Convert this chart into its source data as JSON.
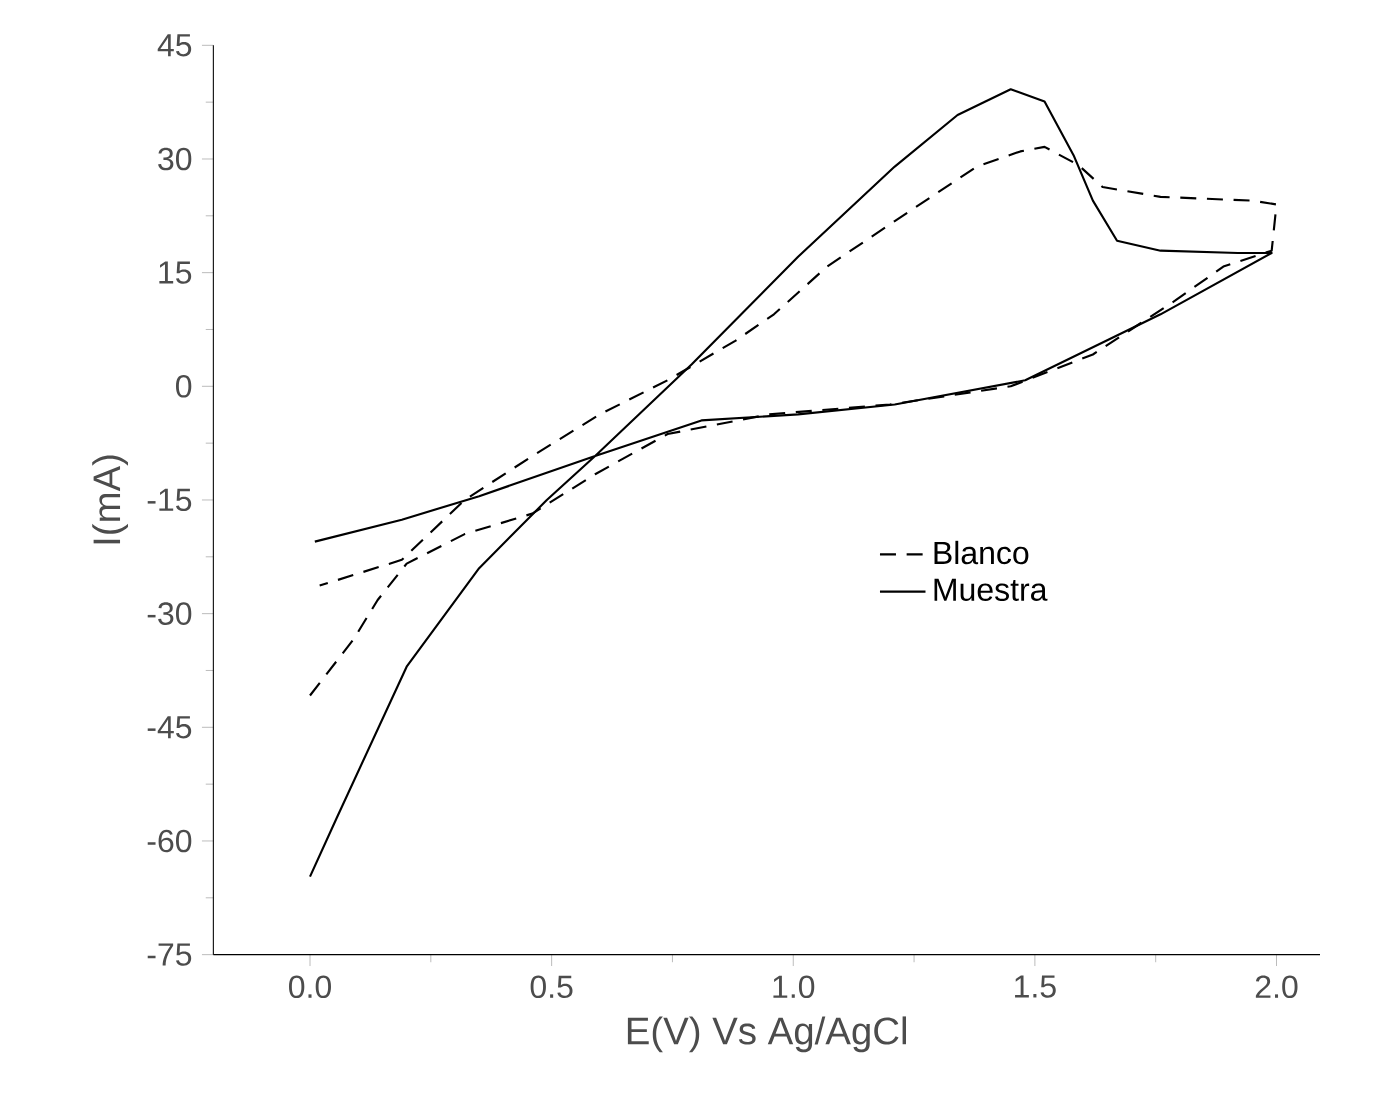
{
  "chart_data": {
    "type": "line",
    "xlabel": "E(V) Vs Ag/AgCl",
    "ylabel": "I(mA)",
    "xlim": [
      -0.2,
      2.09
    ],
    "ylim": [
      -75,
      45
    ],
    "xticks": [
      {
        "value": 0,
        "label": "0.0"
      },
      0.5,
      {
        "value": 1,
        "label": "1.0"
      },
      1.5,
      {
        "value": 2,
        "label": "2.0"
      }
    ],
    "yticks": [
      -75,
      -60,
      -45,
      -30,
      -15,
      0,
      15,
      30,
      45
    ],
    "legend": "right",
    "grid": false,
    "series": [
      {
        "name": "Blanco",
        "color": "#000000",
        "line_style": "dashed",
        "x": [
          0.0,
          0.09,
          0.14,
          0.2,
          0.32,
          0.46,
          0.59,
          0.74,
          0.95,
          1.2,
          1.45,
          1.62,
          1.79,
          1.89,
          1.99,
          2.0,
          1.95,
          1.76,
          1.64,
          1.59,
          1.52,
          1.47,
          1.38,
          1.21,
          1.07,
          0.96,
          0.88,
          0.74,
          0.6,
          0.46,
          0.32,
          0.19,
          0.02
        ],
        "values": [
          -40.8,
          -33.4,
          -28.2,
          -23.4,
          -19.5,
          -16.8,
          -11.6,
          -6.3,
          -3.7,
          -2.4,
          0,
          4.2,
          11.3,
          15.8,
          17.9,
          24,
          24.5,
          25,
          26.3,
          29.2,
          31.6,
          31,
          29,
          21.8,
          15.8,
          9.5,
          6,
          0.8,
          -3.7,
          -9.2,
          -15,
          -22.9,
          -26.3
        ]
      },
      {
        "name": "Muestra",
        "color": "#000000",
        "line_style": "solid",
        "x": [
          0.0,
          0.055,
          0.2,
          0.35,
          0.49,
          0.59,
          0.79,
          1.01,
          1.21,
          1.34,
          1.45,
          1.52,
          1.58,
          1.62,
          1.67,
          1.76,
          1.92,
          1.99,
          1.76,
          1.48,
          1.21,
          1.01,
          0.81,
          0.59,
          0.35,
          0.19,
          0.01
        ],
        "values": [
          -64.7,
          -57,
          -37,
          -24,
          -15,
          -9.2,
          2.9,
          17.1,
          29,
          35.8,
          39.2,
          37.6,
          30.5,
          24.5,
          19.2,
          17.9,
          17.6,
          17.6,
          9.5,
          0.8,
          -2.4,
          -3.7,
          -4.5,
          -9.2,
          -14.5,
          -17.6,
          -20.5
        ]
      }
    ]
  }
}
